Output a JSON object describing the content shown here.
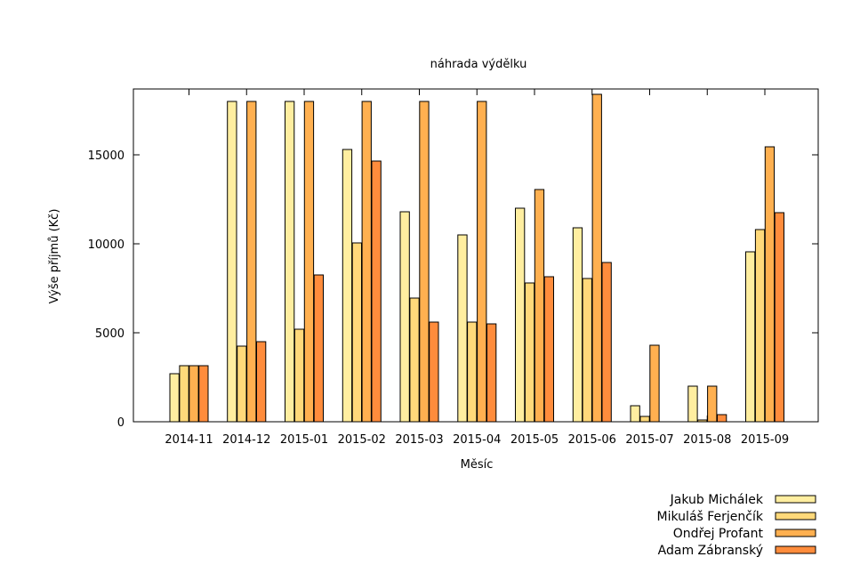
{
  "chart_data": {
    "type": "bar",
    "title": "náhrada výdělku",
    "xlabel": "Měsíc",
    "ylabel": "Výše příjmů (Kč)",
    "ylim": [
      0,
      18700
    ],
    "yticks": [
      0,
      5000,
      10000,
      15000
    ],
    "grid": false,
    "legend_position": "bottom-right",
    "categories": [
      "2014-11",
      "2014-12",
      "2015-01",
      "2015-02",
      "2015-03",
      "2015-04",
      "2015-05",
      "2015-06",
      "2015-07",
      "2015-08",
      "2015-09"
    ],
    "series": [
      {
        "name": "Jakub Michálek",
        "color": "#ffeea0",
        "values": [
          2700,
          18000,
          18000,
          15300,
          11800,
          10500,
          12000,
          10900,
          900,
          2000,
          9550
        ]
      },
      {
        "name": "Mikuláš Ferjenčík",
        "color": "#ffd97a",
        "values": [
          3150,
          4250,
          5200,
          10050,
          6950,
          5600,
          7800,
          8050,
          300,
          100,
          10800
        ]
      },
      {
        "name": "Ondřej Profant",
        "color": "#ffb050",
        "values": [
          3150,
          18000,
          18000,
          18000,
          18000,
          18000,
          13050,
          18400,
          4300,
          2000,
          15450
        ]
      },
      {
        "name": "Adam Zábranský",
        "color": "#ff8c3c",
        "values": [
          3150,
          4500,
          8250,
          14650,
          5600,
          5500,
          8150,
          8950,
          0,
          400,
          11750
        ]
      }
    ]
  }
}
